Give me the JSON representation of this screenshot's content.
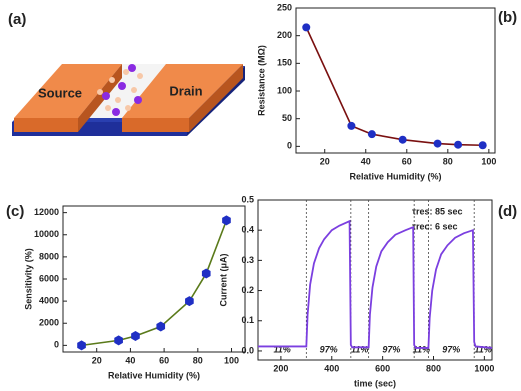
{
  "panels": [
    "(a)",
    "(b)",
    "(c)",
    "(d)"
  ],
  "diagram": {
    "source": "Source",
    "drain": "Drain"
  },
  "chart_data": [
    {
      "type": "line",
      "x_label": "Relative Humidity  (%)",
      "y_label": "Resistance (MΩ)",
      "x": [
        11,
        33,
        43,
        58,
        75,
        85,
        97
      ],
      "values": [
        215,
        37,
        22,
        12,
        5,
        3,
        2
      ],
      "color": "#7a1010",
      "marker": "circle",
      "marker_color": "#1f2fc4",
      "xlim": [
        6,
        103
      ],
      "xticks": [
        20,
        40,
        60,
        80,
        100
      ],
      "ylim": [
        -12,
        250
      ],
      "yticks": [
        0,
        50,
        100,
        150,
        200,
        250
      ]
    },
    {
      "type": "line",
      "x_label": "Relative Humidity (%)",
      "y_label": "Sensitivity (%)",
      "x": [
        11,
        33,
        43,
        58,
        75,
        85,
        97
      ],
      "values": [
        0,
        450,
        850,
        1700,
        4000,
        6500,
        11300
      ],
      "color": "#5a7a1a",
      "marker": "hexagon",
      "marker_color": "#1f2fc4",
      "xlim": [
        0,
        108
      ],
      "xticks": [
        20,
        40,
        60,
        80,
        100
      ],
      "ylim": [
        -600,
        12600
      ],
      "yticks": [
        0,
        2000,
        4000,
        6000,
        8000,
        10000,
        12000
      ]
    },
    {
      "type": "line",
      "x_label": "time (sec)",
      "y_label": "Current (μA)",
      "x": [
        110,
        300,
        305,
        315,
        330,
        350,
        370,
        400,
        430,
        470,
        475,
        480,
        545,
        550,
        560,
        575,
        595,
        620,
        650,
        690,
        720,
        724,
        730,
        780,
        785,
        795,
        810,
        830,
        855,
        885,
        920,
        955,
        960,
        965,
        1030
      ],
      "values": [
        0.015,
        0.015,
        0.12,
        0.22,
        0.29,
        0.34,
        0.37,
        0.4,
        0.415,
        0.43,
        0.02,
        0.012,
        0.012,
        0.12,
        0.21,
        0.28,
        0.33,
        0.36,
        0.385,
        0.4,
        0.41,
        0.02,
        0.01,
        0.01,
        0.11,
        0.2,
        0.27,
        0.32,
        0.35,
        0.375,
        0.39,
        0.4,
        0.03,
        0.015,
        0.01
      ],
      "color": "#7b3fe0",
      "switch_times": [
        300,
        475,
        545,
        724,
        780,
        960
      ],
      "humidity_labels": [
        "11%",
        "97%",
        "11%",
        "97%",
        "11%",
        "97%",
        "11%"
      ],
      "annotations": [
        "τres: 85 sec",
        "τrec: 6 sec"
      ],
      "xlim": [
        110,
        1030
      ],
      "xticks": [
        200,
        400,
        600,
        800,
        1000
      ],
      "ylim": [
        -0.03,
        0.5
      ],
      "yticks": [
        {
          "value": 0,
          "label": "0.0"
        },
        0.1,
        0.2,
        0.3,
        0.4,
        0.5
      ]
    }
  ]
}
